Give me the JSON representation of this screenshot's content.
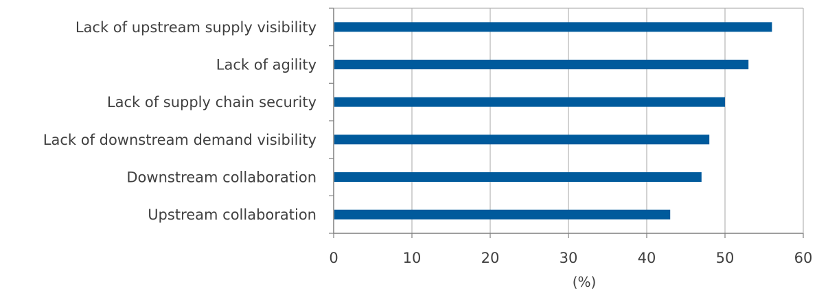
{
  "chart_data": {
    "type": "bar",
    "orientation": "horizontal",
    "categories": [
      "Lack of upstream supply visibility",
      "Lack of agility",
      "Lack of supply chain security",
      "Lack of downstream demand visibility",
      "Downstream collaboration",
      "Upstream collaboration"
    ],
    "values": [
      56,
      53,
      50,
      48,
      47,
      43
    ],
    "xlabel": "(%)",
    "ylabel": "",
    "title": "",
    "xlim": [
      0,
      60
    ],
    "xticks": [
      "0",
      "10",
      "20",
      "30",
      "40",
      "50",
      "60"
    ],
    "grid": "vertical",
    "legend": "none",
    "colors": {
      "bar": "#005a9c",
      "grid": "#b3b3b3",
      "axis": "#7f7f7f",
      "text": "#404040"
    }
  }
}
